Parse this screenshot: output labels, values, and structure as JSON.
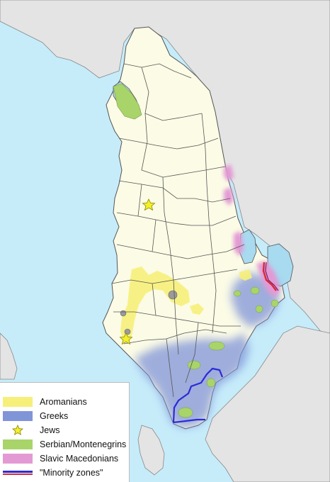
{
  "colors": {
    "sea": "#c6ecfa",
    "land_neighbor": "#e4e4e4",
    "albania": "#fbfbe6",
    "lake": "#a8daf0",
    "border": "#555555",
    "aromanians": "#f6f07a",
    "greeks": "#8094d8",
    "jews": "#f3ef2a",
    "serbian_montenegrins": "#a8d46a",
    "slavic_macedonians": "#e39ad4",
    "minority_zone_blue": "#2b2bd6",
    "minority_zone_red": "#d42a3c"
  },
  "legend": {
    "items": [
      {
        "key": "aromanians",
        "label": "Aromanians",
        "symbol": "swatch"
      },
      {
        "key": "greeks",
        "label": "Greeks",
        "symbol": "swatch"
      },
      {
        "key": "jews",
        "label": "Jews",
        "symbol": "star-icon"
      },
      {
        "key": "serbian_montenegrins",
        "label": "Serbian/Montenegrins",
        "symbol": "swatch"
      },
      {
        "key": "slavic_macedonians",
        "label": "Slavic Macedonians",
        "symbol": "swatch"
      },
      {
        "key": "minority_zones",
        "label": "\"Minority zones\"",
        "symbol": "double-line"
      }
    ]
  }
}
